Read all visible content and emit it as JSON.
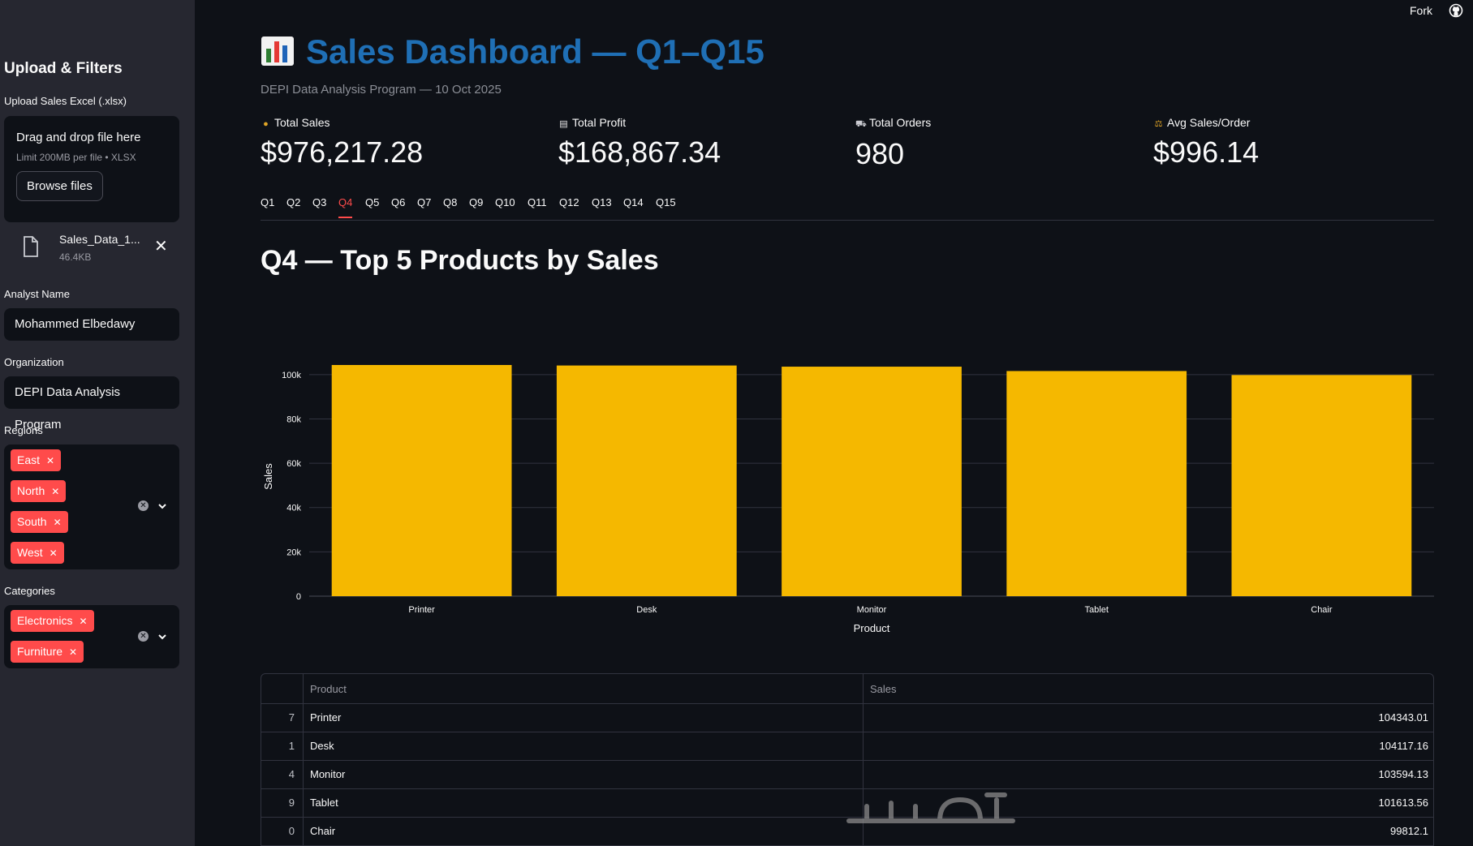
{
  "sidebar": {
    "title": "Upload & Filters",
    "upload": {
      "label": "Upload Sales Excel (.xlsx)",
      "drop_text": "Drag and drop file here",
      "limit_text": "Limit 200MB per file • XLSX",
      "browse_label": "Browse files",
      "file_name": "Sales_Data_1...",
      "file_size": "46.4KB"
    },
    "analyst": {
      "label": "Analyst Name",
      "value": "Mohammed Elbedawy"
    },
    "organization": {
      "label": "Organization",
      "value": "DEPI Data Analysis Program"
    },
    "regions": {
      "label": "Regions",
      "selected": [
        "East",
        "North",
        "South",
        "West"
      ]
    },
    "categories": {
      "label": "Categories",
      "selected": [
        "Electronics",
        "Furniture"
      ]
    }
  },
  "header": {
    "fork_label": "Fork",
    "github_icon": "github-icon"
  },
  "main": {
    "title": "Sales Dashboard — Q1–Q15",
    "title_icon": "bar-chart-emoji",
    "caption": "DEPI Data Analysis Program — 10 Oct 2025",
    "metrics": [
      {
        "icon": "money-bag-icon",
        "label": "Total Sales",
        "value": "$976,217.28"
      },
      {
        "icon": "chart-up-icon",
        "label": "Total Profit",
        "value": "$168,867.34"
      },
      {
        "icon": "cart-icon",
        "label": "Total Orders",
        "value": "980"
      },
      {
        "icon": "scale-icon",
        "label": "Avg Sales/Order",
        "value": "$996.14"
      }
    ],
    "tabs": [
      "Q1",
      "Q2",
      "Q3",
      "Q4",
      "Q5",
      "Q6",
      "Q7",
      "Q8",
      "Q9",
      "Q10",
      "Q11",
      "Q12",
      "Q13",
      "Q14",
      "Q15"
    ],
    "active_tab": "Q4",
    "section_title": "Q4 — Top 5 Products by Sales",
    "table": {
      "columns": [
        "Product",
        "Sales"
      ],
      "rows": [
        {
          "index": "7",
          "product": "Printer",
          "sales": "104343.01"
        },
        {
          "index": "1",
          "product": "Desk",
          "sales": "104117.16"
        },
        {
          "index": "4",
          "product": "Monitor",
          "sales": "103594.13"
        },
        {
          "index": "9",
          "product": "Tablet",
          "sales": "101613.56"
        },
        {
          "index": "0",
          "product": "Chair",
          "sales": "99812.1"
        }
      ]
    }
  },
  "colors": {
    "accent": "#ff4b4b",
    "title_blue": "#1f6fb5",
    "bar": "#f5b800"
  },
  "chart_data": {
    "type": "bar",
    "categories": [
      "Printer",
      "Desk",
      "Monitor",
      "Tablet",
      "Chair"
    ],
    "values": [
      104343.01,
      104117.16,
      103594.13,
      101613.56,
      99812.1
    ],
    "xlabel": "Product",
    "ylabel": "Sales",
    "ylim": [
      0,
      108000
    ],
    "yticks": [
      0,
      20000,
      40000,
      60000,
      80000,
      100000
    ],
    "ytick_labels": [
      "0",
      "20k",
      "40k",
      "60k",
      "80k",
      "100k"
    ],
    "grid": true
  }
}
